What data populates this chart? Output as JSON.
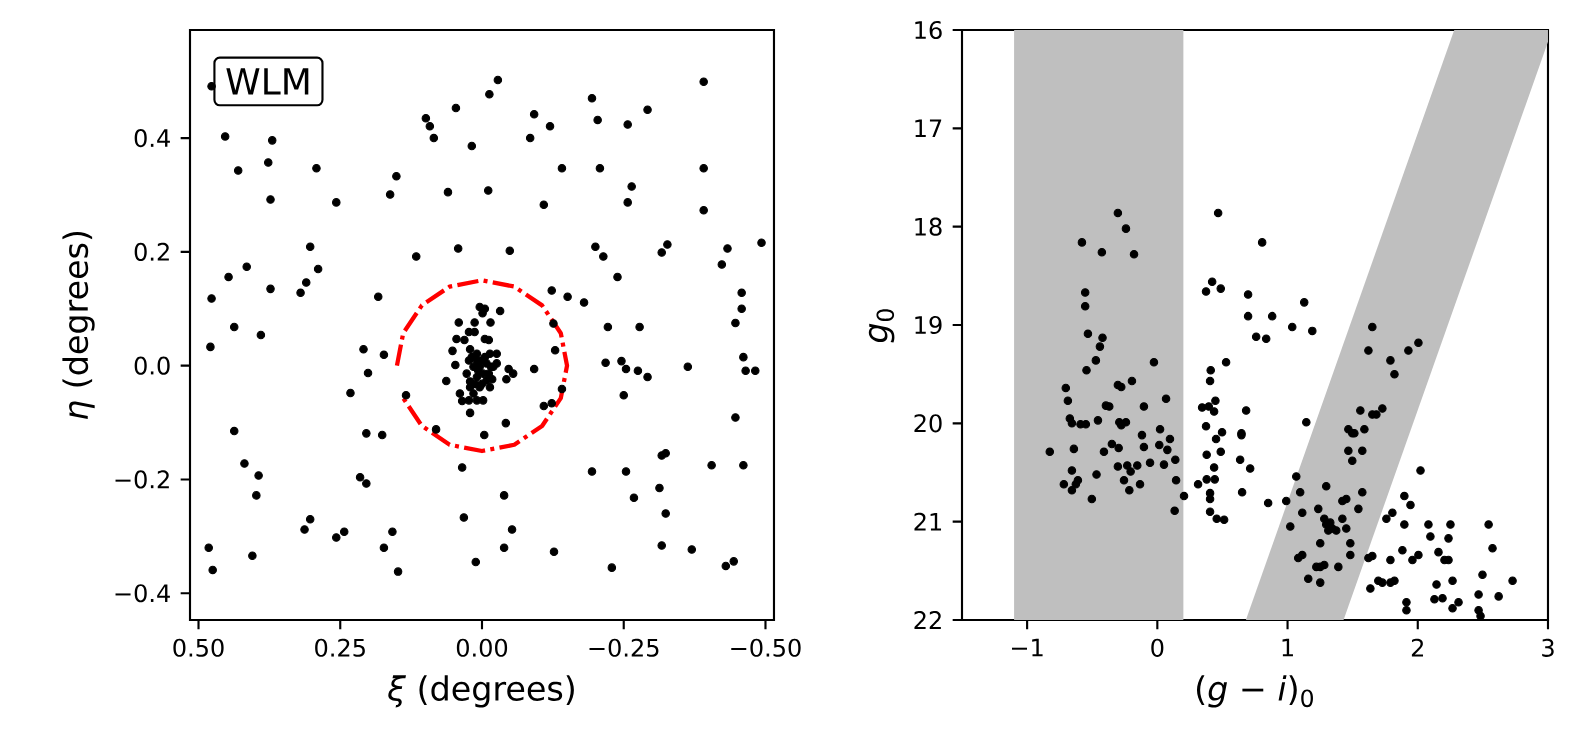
{
  "chart_data": [
    {
      "type": "scatter",
      "xlabel": "*ξ* (degrees)",
      "ylabel": "*η* (degrees)",
      "annotations": [
        "WLM"
      ],
      "xlim": [
        0.515,
        -0.515
      ],
      "ylim": [
        -0.447,
        0.59
      ],
      "xticks": [
        {
          "value": 0.5,
          "label": "0.50"
        },
        {
          "value": 0.25,
          "label": "0.25"
        },
        {
          "value": 0,
          "label": "0.00"
        },
        {
          "value": -0.25,
          "label": "−0.25"
        },
        {
          "value": -0.5,
          "label": "−0.50"
        }
      ],
      "yticks": [
        {
          "value": -0.4,
          "label": "−0.4"
        },
        {
          "value": -0.2,
          "label": "−0.2"
        },
        {
          "value": 0,
          "label": "0.0"
        },
        {
          "value": 0.2,
          "label": "0.2"
        },
        {
          "value": 0.4,
          "label": "0.4"
        }
      ],
      "series": [
        {
          "color": "#000000",
          "marker": "circle",
          "x": [
            0.477,
            0.453,
            0.37,
            0.43,
            0.377,
            0.292,
            0.373,
            0.257,
            -0.028,
            -0.013,
            0.046,
            0.099,
            0.092,
            0.085,
            0.018,
            0.151,
            0.162,
            0.06,
            -0.011,
            -0.092,
            -0.12,
            -0.085,
            -0.194,
            -0.204,
            -0.257,
            -0.292,
            -0.391,
            -0.141,
            -0.208,
            -0.264,
            -0.257,
            -0.109,
            -0.391,
            -0.391,
            0.303,
            0.447,
            0.415,
            0.373,
            0.31,
            0.289,
            0.32,
            0.477,
            0.183,
            0.116,
            0.042,
            -0.049,
            -0.2,
            -0.214,
            -0.239,
            -0.317,
            -0.327,
            -0.423,
            -0.433,
            -0.493,
            -0.458,
            -0.458,
            -0.123,
            -0.151,
            -0.18,
            -0.032,
            0.479,
            0.437,
            0.39,
            0.209,
            0.173,
            0.201,
            0.232,
            0.437,
            0.419,
            0.394,
            0.398,
            0.204,
            0.176,
            0.215,
            0.204,
            0.303,
            0.313,
            0.257,
            0.243,
            0.158,
            0.173,
            0.148,
            0.482,
            0.475,
            0.405,
            0.035,
            0.032,
            0.011,
            -0.039,
            -0.053,
            -0.039,
            -0.127,
            -0.229,
            -0.042,
            -0.004,
            0.021,
            0.081,
            0.134,
            0.063,
            -0.092,
            -0.123,
            -0.141,
            -0.222,
            -0.278,
            -0.218,
            -0.246,
            -0.254,
            -0.275,
            -0.292,
            -0.25,
            -0.363,
            -0.447,
            -0.461,
            -0.465,
            -0.482,
            -0.447,
            -0.461,
            -0.405,
            -0.317,
            -0.324,
            -0.254,
            -0.194,
            -0.268,
            -0.313,
            -0.324,
            -0.317,
            -0.37,
            -0.43,
            -0.444,
            -0.126,
            -0.129,
            -0.109,
            0.004,
            -0.005,
            -0.001,
            0.013,
            -0.015,
            0.041,
            0.023,
            0.013,
            0.045,
            0.031,
            -0.005,
            -0.012,
            0.052,
            0.021,
            0.009,
            -0.014,
            -0.026,
            0.047,
            0.023,
            0.001,
            -0.008,
            -0.016,
            -0.047,
            -0.055,
            -0.043,
            0.027,
            0.021,
            0.009,
            -0.002,
            -0.008,
            0.004,
            0.015,
            0.035,
            0.023,
            0.009,
            -0.002,
            0.039,
            -0.014,
            -0.02,
            -0.026,
            0.015,
            0.007,
            0.0,
            0.012,
            0.021,
            0.004,
            -0.005,
            -0.012,
            -0.018,
            0.009,
            0.018
          ],
          "values": [
            0.491,
            0.403,
            0.396,
            0.343,
            0.357,
            0.347,
            0.292,
            0.287,
            0.502,
            0.477,
            0.453,
            0.435,
            0.421,
            0.4,
            0.386,
            0.333,
            0.301,
            0.305,
            0.308,
            0.442,
            0.421,
            0.4,
            0.47,
            0.432,
            0.424,
            0.45,
            0.499,
            0.347,
            0.347,
            0.315,
            0.287,
            0.283,
            0.347,
            0.273,
            0.209,
            0.156,
            0.174,
            0.135,
            0.146,
            0.17,
            0.128,
            0.118,
            0.121,
            0.192,
            0.206,
            0.202,
            0.209,
            0.192,
            0.156,
            0.199,
            0.213,
            0.178,
            0.206,
            0.216,
            0.128,
            0.1,
            0.132,
            0.121,
            0.111,
            0.096,
            0.033,
            0.068,
            0.054,
            0.029,
            0.019,
            -0.013,
            -0.048,
            -0.115,
            -0.172,
            -0.193,
            -0.228,
            -0.119,
            -0.122,
            -0.196,
            -0.207,
            -0.27,
            -0.288,
            -0.302,
            -0.292,
            -0.292,
            -0.32,
            -0.362,
            -0.32,
            -0.359,
            -0.334,
            -0.179,
            -0.267,
            -0.345,
            -0.228,
            -0.288,
            -0.32,
            -0.327,
            -0.355,
            -0.101,
            -0.122,
            -0.083,
            -0.112,
            -0.052,
            -0.027,
            -0.006,
            -0.066,
            -0.041,
            0.068,
            0.068,
            0.005,
            0.008,
            -0.006,
            -0.009,
            -0.02,
            -0.052,
            -0.002,
            0.075,
            0.015,
            -0.009,
            -0.009,
            -0.091,
            -0.175,
            -0.175,
            -0.158,
            -0.154,
            -0.186,
            -0.186,
            -0.232,
            -0.215,
            -0.26,
            -0.316,
            -0.323,
            -0.352,
            -0.344,
            0.074,
            0.027,
            -0.071,
            0.103,
            0.1,
            0.092,
            0.076,
            0.076,
            0.076,
            0.059,
            0.059,
            0.047,
            0.045,
            0.047,
            0.045,
            0.026,
            0.029,
            0.021,
            0.021,
            0.021,
            0.001,
            0.009,
            0.009,
            0.004,
            -0.002,
            -0.006,
            -0.014,
            -0.024,
            -0.014,
            -0.028,
            -0.02,
            -0.014,
            -0.026,
            -0.038,
            -0.049,
            -0.062,
            -0.061,
            -0.061,
            -0.061,
            -0.049,
            -0.038,
            -0.002,
            0.004,
            -0.002,
            -0.008,
            -0.032,
            -0.032,
            -0.038,
            -0.002,
            0.015,
            -0.014,
            -0.024,
            0.009,
            0.015
          ]
        },
        {
          "type": "line",
          "color": "#ff0000",
          "marker": "none",
          "line_style": "dashdot",
          "x": [
            0.15,
            0.139,
            0.106,
            0.057,
            0,
            -0.057,
            -0.106,
            -0.139,
            -0.15,
            -0.139,
            -0.106,
            -0.057,
            0,
            0.057,
            0.106,
            0.139
          ],
          "values": [
            0,
            0.057,
            0.106,
            0.139,
            0.15,
            0.139,
            0.106,
            0.057,
            0,
            -0.057,
            -0.106,
            -0.139,
            -0.15,
            -0.139,
            -0.106,
            -0.057
          ]
        }
      ]
    },
    {
      "type": "scatter",
      "xlabel": "(*g* − *i*)$_{0}$",
      "ylabel": "*g*$_{0}$",
      "xlim": [
        -1.5,
        3
      ],
      "ylim": [
        22,
        16
      ],
      "xticks": [
        {
          "value": -1,
          "label": "−1"
        },
        0,
        1,
        2,
        3
      ],
      "yticks": [
        16,
        17,
        18,
        19,
        20,
        21,
        22
      ],
      "bands": [
        {
          "axis": "x",
          "from": -1.1,
          "to": 0.2,
          "color": "#bfbfbf"
        }
      ],
      "series": [
        {
          "type": "area",
          "color": "#bfbfbf",
          "x": [
            0.68,
            2.28,
            3.0,
            3.0,
            1.43
          ],
          "values": [
            22,
            16,
            16,
            16.12,
            22
          ]
        },
        {
          "color": "#000000",
          "marker": "circle",
          "x": [
            -0.303,
            -0.241,
            -0.579,
            -0.426,
            -0.179,
            -0.554,
            -0.554,
            -0.533,
            -0.421,
            -0.441,
            -0.472,
            -0.544,
            -0.026,
            -0.195,
            -0.303,
            -0.277,
            -0.703,
            -0.687,
            -0.672,
            -0.656,
            -0.59,
            -0.549,
            -0.456,
            -0.395,
            -0.369,
            -0.292,
            -0.241,
            -0.277,
            -0.103,
            0.067,
            0.021,
            -0.118,
            0.097,
            0.015,
            0.077,
            -0.103,
            -0.349,
            -0.297,
            -0.41,
            -0.826,
            -0.641,
            -0.467,
            -0.656,
            -0.303,
            -0.231,
            -0.154,
            -0.205,
            -0.056,
            0.051,
            0.138,
            -0.718,
            -0.656,
            -0.61,
            -0.626,
            -0.256,
            -0.215,
            -0.133,
            -0.503,
            0.144,
            0.205,
            0.133,
            0.374,
            0.421,
            0.487,
            0.467,
            0.528,
            0.41,
            0.405,
            0.344,
            0.395,
            0.446,
            0.436,
            0.374,
            0.497,
            0.451,
            0.487,
            0.379,
            0.379,
            0.441,
            0.313,
            0.436,
            0.405,
            0.405,
            0.405,
            0.456,
            0.513,
            0.805,
            0.697,
            0.697,
            0.759,
            0.836,
            0.882,
            1.036,
            1.128,
            1.19,
            0.682,
            0.646,
            0.646,
            0.636,
            0.713,
            0.651,
            0.851,
            0.99,
            1.067,
            1.097,
            1.144,
            1.113,
            1.021,
            1.236,
            1.297,
            1.421,
            1.451,
            1.574,
            1.544,
            1.651,
            1.621,
            1.79,
            1.821,
            1.928,
            2.005,
            1.559,
            1.651,
            1.682,
            1.728,
            1.59,
            1.467,
            1.497,
            1.513,
            1.467,
            1.574,
            1.497,
            2.021,
            1.897,
            1.944,
            1.759,
            1.805,
            1.897,
            2.082,
            2.251,
            2.544,
            2.097,
            2.236,
            2.574,
            1.882,
            2.005,
            1.959,
            2.159,
            2.205,
            2.236,
            1.79,
            1.651,
            1.621,
            1.636,
            1.697,
            1.728,
            1.79,
            1.821,
            2.144,
            2.267,
            2.497,
            2.728,
            2.621,
            2.467,
            2.128,
            2.19,
            2.313,
            2.267,
            1.913,
            1.913,
            2.467,
            2.482,
            1.39,
            1.282,
            1.251,
            1.221,
            1.159,
            1.251,
            1.113,
            1.082,
            1.482,
            1.482,
            1.251,
            1.313,
            1.344,
            1.374,
            1.421,
            1.451,
            1.328,
            1.297,
            1.282
          ],
          "values": [
            17.86,
            18.02,
            18.16,
            18.26,
            18.28,
            18.67,
            18.81,
            19.09,
            19.13,
            19.22,
            19.36,
            19.46,
            19.38,
            19.57,
            19.61,
            19.63,
            19.64,
            19.77,
            19.95,
            20.0,
            20.01,
            20.01,
            19.97,
            19.82,
            19.83,
            19.99,
            19.99,
            20.02,
            19.83,
            19.75,
            20.06,
            20.12,
            20.16,
            20.22,
            20.27,
            20.24,
            20.21,
            20.25,
            20.29,
            20.29,
            20.26,
            20.52,
            20.48,
            20.44,
            20.43,
            20.43,
            20.49,
            20.4,
            20.42,
            20.37,
            20.62,
            20.68,
            20.58,
            20.62,
            20.58,
            20.68,
            20.62,
            20.77,
            20.58,
            20.74,
            20.89,
            18.66,
            18.56,
            18.63,
            17.86,
            19.38,
            19.46,
            19.57,
            19.84,
            19.83,
            19.77,
            19.88,
            20.03,
            20.09,
            20.16,
            20.29,
            20.32,
            20.57,
            20.57,
            20.62,
            20.45,
            20.71,
            20.77,
            20.9,
            20.97,
            20.98,
            18.16,
            18.69,
            18.91,
            19.12,
            19.14,
            18.91,
            19.02,
            18.77,
            19.06,
            19.87,
            20.1,
            20.12,
            20.37,
            20.46,
            20.7,
            20.81,
            20.79,
            20.54,
            20.7,
            19.99,
            20.91,
            21.05,
            20.87,
            20.64,
            20.79,
            20.77,
            20.7,
            20.87,
            19.02,
            19.26,
            19.36,
            19.5,
            19.26,
            19.18,
            19.87,
            19.91,
            19.91,
            19.85,
            20.06,
            20.06,
            20.1,
            20.1,
            20.28,
            20.28,
            20.38,
            20.48,
            20.74,
            20.83,
            20.97,
            20.91,
            21.03,
            21.03,
            21.03,
            21.03,
            21.15,
            21.17,
            21.27,
            21.29,
            21.34,
            21.39,
            21.31,
            21.39,
            21.39,
            21.39,
            21.35,
            21.37,
            21.68,
            21.6,
            21.62,
            21.62,
            21.6,
            21.64,
            21.6,
            21.54,
            21.6,
            21.76,
            21.74,
            21.79,
            21.78,
            21.82,
            21.88,
            21.82,
            21.9,
            21.9,
            21.96,
            21.46,
            21.44,
            21.46,
            21.46,
            21.58,
            21.62,
            21.34,
            21.37,
            21.34,
            21.22,
            21.22,
            21.09,
            21.07,
            21.09,
            20.97,
            21.07,
            21.01,
            21.03,
            20.97
          ]
        }
      ]
    }
  ]
}
